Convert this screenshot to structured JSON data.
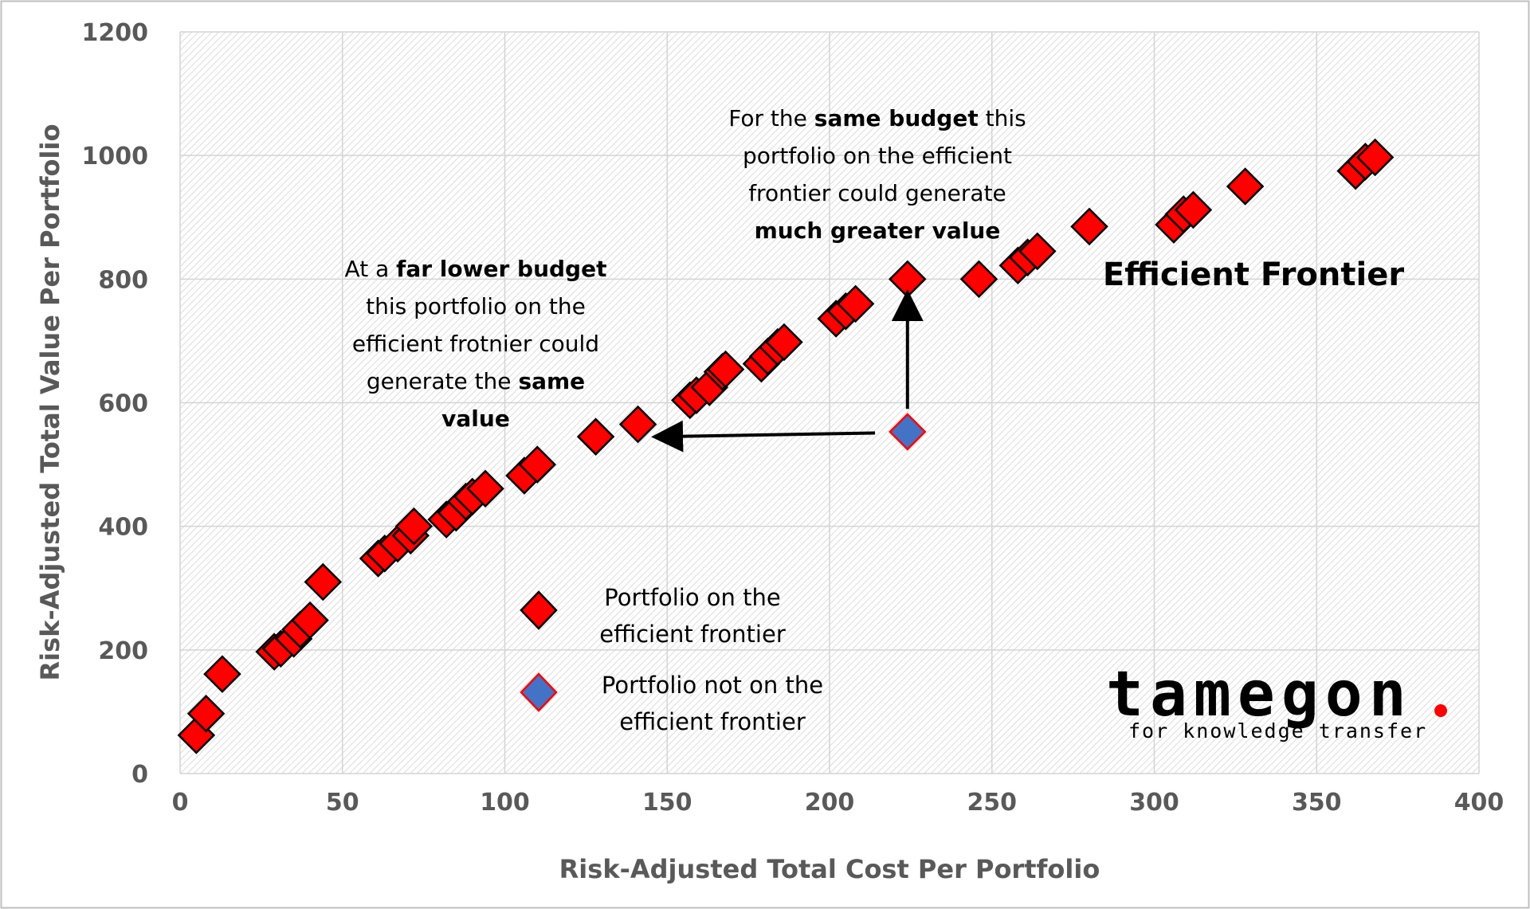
{
  "chart_data": {
    "type": "scatter",
    "xlabel": "Risk-Adjusted Total Cost Per Portfolio",
    "ylabel": "Risk-Adjusted Total Value Per Portfolio",
    "xlim": [
      0,
      400
    ],
    "ylim": [
      0,
      1200
    ],
    "x_ticks": [
      "0",
      "50",
      "100",
      "150",
      "200",
      "250",
      "300",
      "350",
      "400"
    ],
    "y_ticks": [
      "0",
      "200",
      "400",
      "600",
      "800",
      "1000",
      "1200"
    ],
    "grid": true,
    "legend_position": "bottom-center",
    "series": [
      {
        "name": "Portfolio on the efficient frontier",
        "color": "#ff0000",
        "marker": "diamond",
        "points": [
          [
            5,
            62
          ],
          [
            8,
            97
          ],
          [
            13,
            161
          ],
          [
            29,
            197
          ],
          [
            31,
            202
          ],
          [
            35,
            218
          ],
          [
            37,
            233
          ],
          [
            40,
            248
          ],
          [
            44,
            310
          ],
          [
            61,
            348
          ],
          [
            63,
            356
          ],
          [
            67,
            372
          ],
          [
            71,
            385
          ],
          [
            72,
            400
          ],
          [
            82,
            411
          ],
          [
            85,
            422
          ],
          [
            88,
            440
          ],
          [
            90,
            448
          ],
          [
            94,
            461
          ],
          [
            106,
            482
          ],
          [
            110,
            500
          ],
          [
            128,
            545
          ],
          [
            141,
            565
          ],
          [
            157,
            604
          ],
          [
            159,
            612
          ],
          [
            163,
            625
          ],
          [
            167,
            650
          ],
          [
            168,
            654
          ],
          [
            179,
            663
          ],
          [
            181,
            675
          ],
          [
            184,
            690
          ],
          [
            186,
            698
          ],
          [
            202,
            736
          ],
          [
            205,
            748
          ],
          [
            208,
            760
          ],
          [
            224,
            800
          ],
          [
            246,
            800
          ],
          [
            258,
            822
          ],
          [
            261,
            835
          ],
          [
            264,
            845
          ],
          [
            280,
            885
          ],
          [
            306,
            888
          ],
          [
            309,
            905
          ],
          [
            312,
            912
          ],
          [
            328,
            950
          ],
          [
            362,
            975
          ],
          [
            365,
            990
          ],
          [
            368,
            997
          ]
        ]
      },
      {
        "name": "Portfolio not on the efficient frontier",
        "color": "#4472c4",
        "marker": "diamond",
        "points": [
          [
            224,
            553
          ]
        ]
      }
    ],
    "annotations": [
      {
        "lines": [
          [
            {
              "t": "For the "
            },
            {
              "t": "same budget",
              "b": true
            },
            {
              "t": " this"
            }
          ],
          [
            {
              "t": "portfolio on the efficient"
            }
          ],
          [
            {
              "t": "frontier could generate"
            }
          ],
          [
            {
              "t": "much greater value",
              "b": true
            }
          ]
        ]
      },
      {
        "lines": [
          [
            {
              "t": "At a "
            },
            {
              "t": "far lower budget",
              "b": true
            }
          ],
          [
            {
              "t": "this portfolio on the"
            }
          ],
          [
            {
              "t": "efficient frotnier could"
            }
          ],
          [
            {
              "t": "generate the "
            },
            {
              "t": "same",
              "b": true
            }
          ],
          [
            {
              "t": "value",
              "b": true
            }
          ]
        ]
      }
    ],
    "label_big": "Efficient Frontier",
    "arrows": [
      {
        "from": [
          224,
          590
        ],
        "to": [
          224,
          768
        ]
      },
      {
        "from": [
          214,
          551
        ],
        "to": [
          148,
          545
        ]
      }
    ]
  },
  "legend": {
    "on_frontier": [
      "Portfolio on the",
      "efficient frontier"
    ],
    "not_on_frontier": [
      "Portfolio not on the",
      "efficient frontier"
    ]
  },
  "logo": {
    "word": "tamegon",
    "tagline": "for knowledge transfer",
    "dot_color": "#ff0000"
  }
}
